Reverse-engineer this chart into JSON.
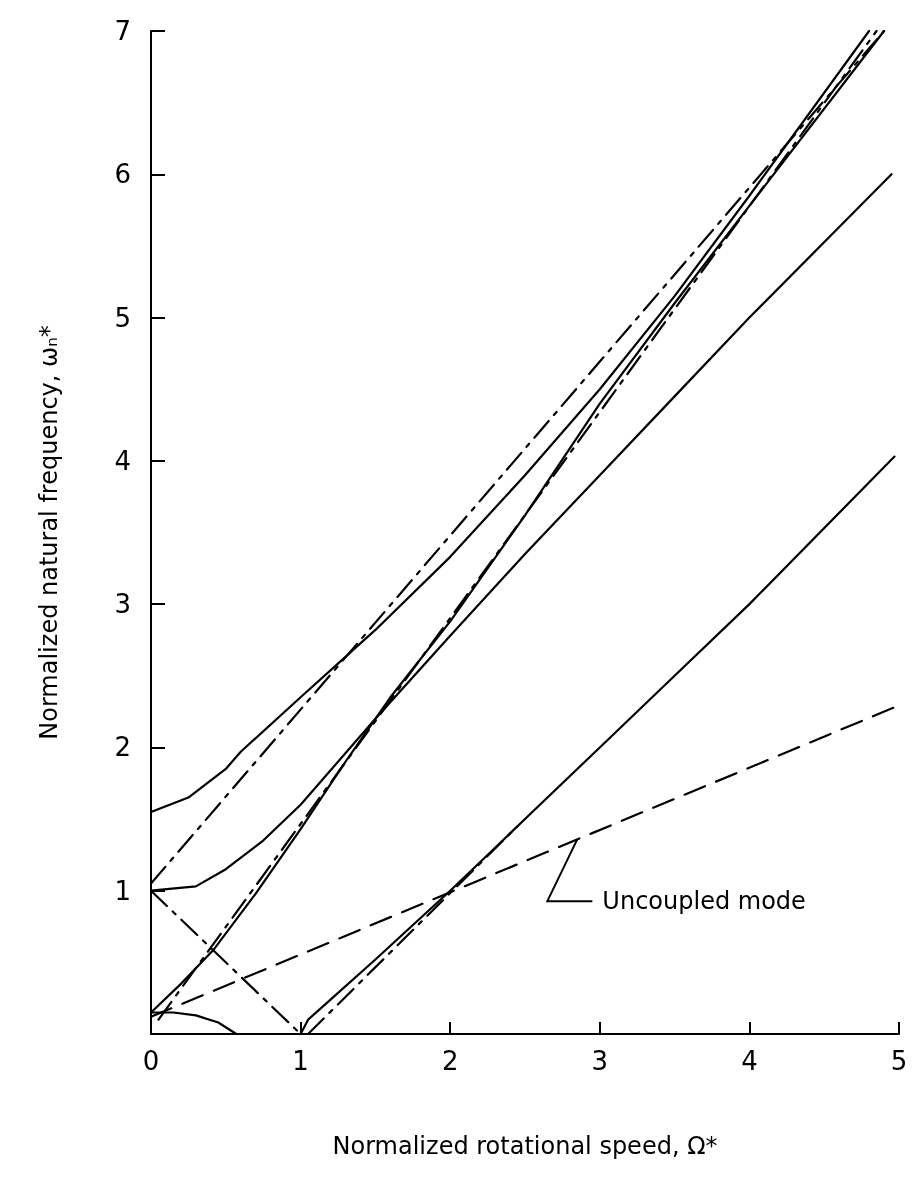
{
  "chart_data": {
    "type": "line",
    "xlabel": "Normalized rotational speed, Ω*",
    "ylabel": "Normalized natural frequency, ωₙ*",
    "xlim": [
      0,
      5
    ],
    "xticks": [
      0,
      1,
      2,
      3,
      4,
      5
    ],
    "ylim": [
      0,
      7
    ],
    "yticks": [
      1,
      2,
      3,
      4,
      5,
      6,
      7
    ],
    "marker": "none",
    "series": [
      {
        "color": "#000000",
        "line_style": "solid",
        "x": [
          0,
          0.25,
          0.5,
          0.6,
          1,
          1.5,
          2,
          2.5,
          3,
          3.5,
          4,
          4.8
        ],
        "values": [
          1.55,
          1.65,
          1.85,
          1.97,
          2.35,
          2.82,
          3.33,
          3.9,
          4.5,
          5.15,
          5.85,
          7.0
        ]
      },
      {
        "color": "#000000",
        "line_style": "solid",
        "x": [
          0,
          0.2,
          0.42,
          0.7,
          1,
          1.3,
          1.6,
          2,
          2.5,
          3,
          3.5,
          4,
          4.9
        ],
        "values": [
          0.15,
          0.35,
          0.59,
          0.98,
          1.43,
          1.9,
          2.35,
          2.88,
          3.62,
          4.4,
          5.1,
          5.78,
          7.0
        ]
      },
      {
        "color": "#000000",
        "line_style": "solid",
        "x": [
          0,
          0.3,
          0.5,
          0.75,
          1,
          1.5,
          2,
          2.5,
          3,
          3.5,
          4,
          4.95
        ],
        "values": [
          1.0,
          1.03,
          1.15,
          1.35,
          1.6,
          2.2,
          2.78,
          3.35,
          3.9,
          4.45,
          5.0,
          6.0
        ]
      },
      {
        "color": "#000000",
        "line_style": "solid",
        "x": [
          1,
          1.05,
          1.2,
          1.5,
          2,
          2.5,
          3,
          3.5,
          4,
          4.97
        ],
        "values": [
          0,
          0.1,
          0.24,
          0.52,
          1.0,
          1.5,
          2.0,
          2.5,
          3.0,
          4.03
        ]
      },
      {
        "color": "#000000",
        "line_style": "solid",
        "x": [
          0,
          0.15,
          0.3,
          0.45,
          0.57
        ],
        "values": [
          0.15,
          0.15,
          0.13,
          0.08,
          0
        ]
      },
      {
        "color": "#000000",
        "line_style": "dashed",
        "x": [
          0,
          4.97
        ],
        "values": [
          0.12,
          2.28
        ]
      },
      {
        "color": "#000000",
        "line_style": "dashdot",
        "x": [
          0,
          1
        ],
        "values": [
          1,
          0
        ]
      },
      {
        "color": "#000000",
        "line_style": "dashdot",
        "x": [
          1.05,
          2.45
        ],
        "values": [
          0,
          1.45
        ]
      },
      {
        "color": "#000000",
        "line_style": "dashdot",
        "x": [
          0.05,
          4.85
        ],
        "values": [
          0.1,
          7.0
        ]
      },
      {
        "color": "#000000",
        "line_style": "dashdot",
        "x": [
          0,
          4.9
        ],
        "values": [
          1.05,
          7.0
        ]
      }
    ],
    "annotations": [
      {
        "text": "Uncoupled mode",
        "x": 2.85,
        "y": 1.36
      }
    ]
  }
}
